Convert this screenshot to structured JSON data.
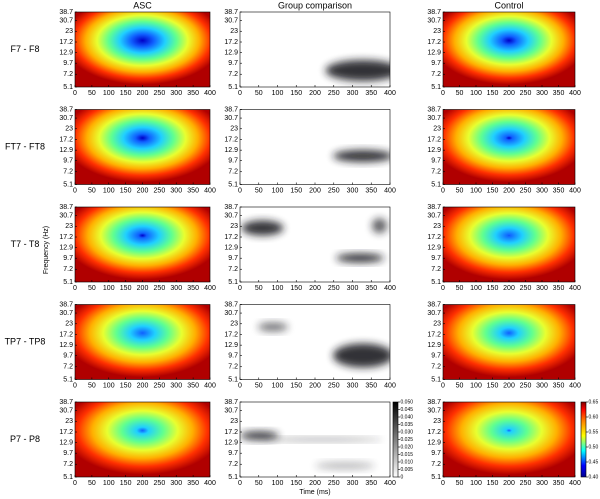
{
  "chart_data": {
    "type": "heatmap-grid",
    "columns": [
      "ASC",
      "Group comparison",
      "Control"
    ],
    "rows": [
      "F7 - F8",
      "FT7 - FT8",
      "T7 - T8",
      "TP7 - TP8",
      "P7 - P8"
    ],
    "xlabel": "Time (ms)",
    "ylabel": "Frequency (Hz)",
    "xlim": [
      0,
      400
    ],
    "xticks": [
      0,
      50,
      100,
      150,
      200,
      250,
      300,
      350,
      400
    ],
    "ylim": [
      5.1,
      38.7
    ],
    "yscale": "log",
    "yticks": [
      5.1,
      7.2,
      9.7,
      12.9,
      17.2,
      23,
      30.7,
      38.7
    ],
    "colorbars": [
      {
        "colormap": "gray",
        "lim": [
          0,
          0.05
        ],
        "ticks": [
          0,
          0.005,
          {
            "value": 0.01,
            "label": "0.010"
          },
          0.015,
          {
            "value": 0.02,
            "label": "0.020"
          },
          0.025,
          {
            "value": 0.03,
            "label": "0.030"
          },
          0.035,
          {
            "value": 0.04,
            "label": "0.040"
          },
          0.045,
          {
            "value": 0.05,
            "label": "0.050"
          }
        ]
      },
      {
        "colormap": "jet",
        "lim": [
          0.4,
          0.65
        ],
        "ticks": [
          {
            "value": 0.4,
            "label": "0.40"
          },
          0.45,
          {
            "value": 0.5,
            "label": "0.50"
          },
          0.55,
          {
            "value": 0.6,
            "label": "0.60"
          },
          0.65
        ]
      }
    ]
  }
}
